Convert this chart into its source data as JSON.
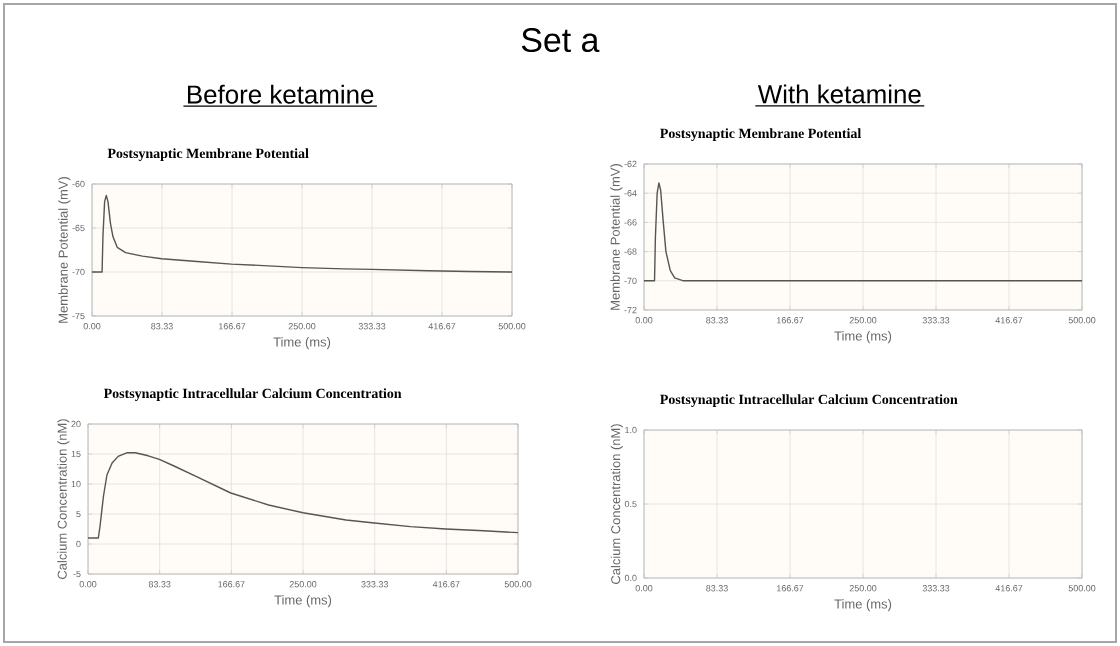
{
  "chart_data": [
    {
      "type": "line",
      "title": "Postsynaptic Membrane Potential",
      "xlabel": "Time (ms)",
      "ylabel": "Membrane Potential (mV)",
      "annotations": [
        "Set a",
        "Before ketamine"
      ],
      "xlim": [
        0,
        500
      ],
      "xticks": [
        {
          "value": 0,
          "label": "0.00"
        },
        {
          "value": 83.33,
          "label": "83.33"
        },
        {
          "value": 166.67,
          "label": "166.67"
        },
        {
          "value": 250,
          "label": "250.00"
        },
        {
          "value": 333.33,
          "label": "333.33"
        },
        {
          "value": 416.67,
          "label": "416.67"
        },
        {
          "value": 500,
          "label": "500.00"
        }
      ],
      "ylim": [
        -75,
        -60
      ],
      "yticks": [
        -75,
        -70,
        -65,
        -60
      ],
      "grid": true,
      "series": [
        {
          "color": "#555555",
          "x": [
            0,
            12,
            13,
            15,
            17,
            19,
            22,
            25,
            30,
            40,
            60,
            83,
            125,
            166,
            210,
            250,
            300,
            333,
            400,
            450,
            500
          ],
          "values": [
            -70,
            -70,
            -66,
            -62,
            -61.3,
            -62,
            -64.5,
            -66,
            -67.2,
            -67.8,
            -68.2,
            -68.5,
            -68.8,
            -69.1,
            -69.3,
            -69.5,
            -69.65,
            -69.7,
            -69.85,
            -69.95,
            -70
          ]
        }
      ]
    },
    {
      "type": "line",
      "title": "Postsynaptic Membrane Potential",
      "xlabel": "Time (ms)",
      "ylabel": "Membrane Potential (mV)",
      "annotations": [
        "With ketamine"
      ],
      "xlim": [
        0,
        500
      ],
      "xticks": [
        {
          "value": 0,
          "label": "0.00"
        },
        {
          "value": 83.33,
          "label": "83.33"
        },
        {
          "value": 166.67,
          "label": "166.67"
        },
        {
          "value": 250,
          "label": "250.00"
        },
        {
          "value": 333.33,
          "label": "333.33"
        },
        {
          "value": 416.67,
          "label": "416.67"
        },
        {
          "value": 500,
          "label": "500.00"
        }
      ],
      "ylim": [
        -72,
        -62
      ],
      "yticks": [
        -72,
        -70,
        -68,
        -66,
        -64,
        -62
      ],
      "grid": true,
      "series": [
        {
          "color": "#555555",
          "x": [
            0,
            12,
            13,
            15,
            17,
            19,
            22,
            25,
            30,
            35,
            45,
            500
          ],
          "values": [
            -70,
            -70,
            -67,
            -64,
            -63.3,
            -63.8,
            -66,
            -68,
            -69.3,
            -69.8,
            -70,
            -70
          ]
        }
      ]
    },
    {
      "type": "line",
      "title": "Postsynaptic Intracellular Calcium Concentration",
      "xlabel": "Time (ms)",
      "ylabel": "Calcium Concentration (nM)",
      "xlim": [
        0,
        500
      ],
      "xticks": [
        {
          "value": 0,
          "label": "0.00"
        },
        {
          "value": 83.33,
          "label": "83.33"
        },
        {
          "value": 166.67,
          "label": "166.67"
        },
        {
          "value": 250,
          "label": "250.00"
        },
        {
          "value": 333.33,
          "label": "333.33"
        },
        {
          "value": 416.67,
          "label": "416.67"
        },
        {
          "value": 500,
          "label": "500.00"
        }
      ],
      "ylim": [
        -5,
        20
      ],
      "yticks": [
        -5,
        0,
        5,
        10,
        15,
        20
      ],
      "grid": true,
      "series": [
        {
          "color": "#555555",
          "x": [
            0,
            12,
            14,
            18,
            22,
            28,
            35,
            45,
            55,
            70,
            83,
            100,
            125,
            166,
            210,
            250,
            300,
            333,
            375,
            416,
            460,
            500
          ],
          "values": [
            1,
            1,
            3,
            8,
            11.5,
            13.5,
            14.6,
            15.2,
            15.2,
            14.7,
            14.1,
            13,
            11.3,
            8.5,
            6.5,
            5.2,
            4,
            3.5,
            2.9,
            2.5,
            2.2,
            1.9
          ]
        }
      ]
    },
    {
      "type": "line",
      "title": "Postsynaptic Intracellular Calcium Concentration",
      "xlabel": "Time (ms)",
      "ylabel": "Calcium Concentration (nM)",
      "xlim": [
        0,
        500
      ],
      "xticks": [
        {
          "value": 0,
          "label": "0.00"
        },
        {
          "value": 83.33,
          "label": "83.33"
        },
        {
          "value": 166.67,
          "label": "166.67"
        },
        {
          "value": 250,
          "label": "250.00"
        },
        {
          "value": 333.33,
          "label": "333.33"
        },
        {
          "value": 416.67,
          "label": "416.67"
        },
        {
          "value": 500,
          "label": "500.00"
        }
      ],
      "ylim": [
        0,
        1
      ],
      "yticks": [
        {
          "value": 0,
          "label": "0.0"
        },
        {
          "value": 0.5,
          "label": "0.5"
        },
        {
          "value": 1,
          "label": "1.0"
        }
      ],
      "grid": true
    }
  ]
}
